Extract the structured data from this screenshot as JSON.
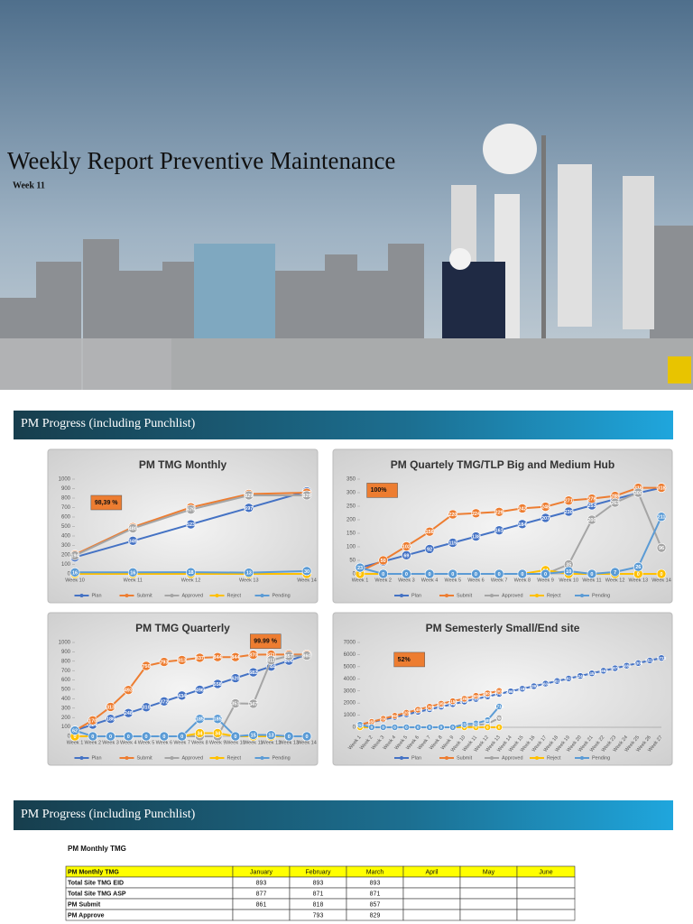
{
  "header": {
    "title": "Weekly Report Preventive Maintenance",
    "subtitle": "Week 11"
  },
  "sections": [
    "PM Progress (including Punchlist)",
    "PM Progress (including Punchlist)"
  ],
  "chart_data": [
    {
      "type": "line",
      "title": "PM TMG Monthly",
      "annotation": "98,39 %",
      "categories": [
        "Week 10",
        "Week 11",
        "Week 12",
        "Week 13",
        "Week 14"
      ],
      "ylim": [
        0,
        1000
      ],
      "yticks": [
        0,
        100,
        200,
        300,
        400,
        500,
        600,
        700,
        800,
        900,
        1000
      ],
      "series": [
        {
          "name": "Plan",
          "color": "#4472c4",
          "values": [
            175,
            349,
            523,
            697,
            871
          ]
        },
        {
          "name": "Submit",
          "color": "#ed7d31",
          "values": [
            204,
            493,
            702,
            843,
            857
          ]
        },
        {
          "name": "Approved",
          "color": "#a5a5a5",
          "values": [
            194,
            480,
            679,
            829,
            829
          ]
        },
        {
          "name": "Reject",
          "color": "#ffc000",
          "values": [
            0,
            0,
            0,
            0,
            0
          ]
        },
        {
          "name": "Pending",
          "color": "#5b9bd5",
          "values": [
            16,
            16,
            18,
            13,
            30
          ]
        }
      ]
    },
    {
      "type": "line",
      "title": "PM Quartely TMG/TLP Big and Medium Hub",
      "annotation": "100%",
      "categories": [
        "Week 1",
        "Week 2",
        "Week 3",
        "Week 4",
        "Week 5",
        "Week 6",
        "Week 7",
        "Week 8",
        "Week 9",
        "Week 10",
        "Week 11",
        "Week 12",
        "Week 13",
        "Week 14"
      ],
      "ylim": [
        0,
        350
      ],
      "yticks": [
        0,
        50,
        100,
        150,
        200,
        250,
        300,
        350
      ],
      "series": [
        {
          "name": "Plan",
          "color": "#4472c4",
          "values": [
            23,
            46,
            69,
            92,
            115,
            138,
            161,
            184,
            207,
            230,
            253,
            276,
            299,
            318
          ]
        },
        {
          "name": "Submit",
          "color": "#ed7d31",
          "values": [
            10,
            50,
            102,
            156,
            220,
            224,
            229,
            242,
            248,
            271,
            278,
            288,
            318,
            318
          ]
        },
        {
          "name": "Approved",
          "color": "#a5a5a5",
          "values": [
            0,
            0,
            0,
            0,
            0,
            0,
            0,
            0,
            0,
            35,
            200,
            263,
            300,
            96
          ]
        },
        {
          "name": "Reject",
          "color": "#ffc000",
          "values": [
            0,
            0,
            0,
            0,
            0,
            0,
            0,
            0,
            14,
            0,
            0,
            0,
            0,
            0
          ]
        },
        {
          "name": "Pending",
          "color": "#5b9bd5",
          "values": [
            23,
            0,
            0,
            0,
            0,
            0,
            0,
            0,
            0,
            10,
            0,
            7,
            26,
            211
          ]
        }
      ]
    },
    {
      "type": "line",
      "title": "PM TMG Quarterly",
      "annotation": "99.99 %",
      "categories": [
        "Week 1",
        "Week 2",
        "Week 3",
        "Week 4",
        "Week 5",
        "Week 6",
        "Week 7",
        "Week 8",
        "Week 9",
        "Week 10",
        "Week 11",
        "Week 12",
        "Week 13",
        "Week 14"
      ],
      "ylim": [
        0,
        1000
      ],
      "yticks": [
        0,
        100,
        200,
        300,
        400,
        500,
        600,
        700,
        800,
        900,
        1000
      ],
      "series": [
        {
          "name": "Plan",
          "color": "#4472c4",
          "values": [
            62,
            124,
            186,
            248,
            310,
            372,
            434,
            496,
            558,
            620,
            682,
            744,
            806,
            871
          ]
        },
        {
          "name": "Submit",
          "color": "#ed7d31",
          "values": [
            62,
            170,
            313,
            493,
            750,
            793,
            813,
            837,
            844,
            844,
            870,
            871,
            871,
            871
          ]
        },
        {
          "name": "Approved",
          "color": "#a5a5a5",
          "values": [
            0,
            0,
            0,
            0,
            0,
            0,
            0,
            0,
            0,
            351,
            347,
            811,
            857,
            860
          ]
        },
        {
          "name": "Reject",
          "color": "#ffc000",
          "values": [
            0,
            0,
            0,
            0,
            0,
            0,
            0,
            34,
            34,
            0,
            0,
            0,
            0,
            0
          ]
        },
        {
          "name": "Pending",
          "color": "#5b9bd5",
          "values": [
            62,
            0,
            0,
            0,
            0,
            0,
            0,
            185,
            185,
            0,
            15,
            13,
            0,
            0
          ]
        }
      ]
    },
    {
      "type": "line",
      "title": "PM Semesterly Small/End site",
      "annotation": "52%",
      "categories": [
        "Week 1",
        "Week 2",
        "Week 3",
        "Week 4",
        "Week 5",
        "Week 6",
        "Week 7",
        "Week 8",
        "Week 9",
        "Week 10",
        "Week 11",
        "Week 12",
        "Week 13",
        "Week 14",
        "Week 15",
        "Week 16",
        "Week 17",
        "Week 18",
        "Week 19",
        "Week 20",
        "Week 21",
        "Week 22",
        "Week 23",
        "Week 24",
        "Week 25",
        "Week 26",
        "Week 27"
      ],
      "ylim": [
        0,
        7000
      ],
      "yticks": [
        0,
        1000,
        2000,
        3000,
        4000,
        5000,
        6000,
        7000
      ],
      "series": [
        {
          "name": "Plan",
          "color": "#4472c4",
          "values": [
            212,
            424,
            636,
            848,
            1060,
            1272,
            1484,
            1696,
            1908,
            2120,
            2332,
            2544,
            2756,
            2968,
            3180,
            3392,
            3604,
            3816,
            4028,
            4240,
            4452,
            4664,
            4876,
            5088,
            5300,
            5512,
            5723
          ]
        },
        {
          "name": "Submit",
          "color": "#ed7d31",
          "values": [
            220,
            450,
            700,
            950,
            1200,
            1450,
            1700,
            1950,
            2150,
            2350,
            2600,
            2800,
            3000,
            null,
            null,
            null,
            null,
            null,
            null,
            null,
            null,
            null,
            null,
            null,
            null,
            null,
            null
          ]
        },
        {
          "name": "Approved",
          "color": "#a5a5a5",
          "values": [
            0,
            0,
            0,
            0,
            0,
            0,
            0,
            0,
            0,
            0,
            180,
            280,
            760,
            null,
            null,
            null,
            null,
            null,
            null,
            null,
            null,
            null,
            null,
            null,
            null,
            null,
            null
          ]
        },
        {
          "name": "Reject",
          "color": "#ffc000",
          "values": [
            0,
            0,
            0,
            0,
            0,
            0,
            0,
            0,
            0,
            0,
            0,
            0,
            0,
            null,
            null,
            null,
            null,
            null,
            null,
            null,
            null,
            null,
            null,
            null,
            null,
            null,
            null
          ]
        },
        {
          "name": "Pending",
          "color": "#5b9bd5",
          "values": [
            212,
            0,
            0,
            0,
            0,
            0,
            0,
            0,
            0,
            237,
            318,
            589,
            1714,
            null,
            null,
            null,
            null,
            null,
            null,
            null,
            null,
            null,
            null,
            null,
            null,
            null,
            null
          ]
        }
      ]
    }
  ],
  "table": {
    "title": "PM Monthly TMG",
    "header": [
      "PM Monthly TMG",
      "January",
      "February",
      "March",
      "April",
      "May",
      "June"
    ],
    "rows": [
      [
        "Total Site TMG EID",
        "893",
        "893",
        "893",
        null,
        null,
        null
      ],
      [
        "Total Site TMG ASP",
        "877",
        "871",
        "871",
        null,
        null,
        null
      ],
      [
        "PM Submit",
        "861",
        "818",
        "857",
        null,
        null,
        null
      ],
      [
        "PM Approve",
        null,
        "793",
        "829",
        null,
        null,
        null
      ]
    ]
  }
}
